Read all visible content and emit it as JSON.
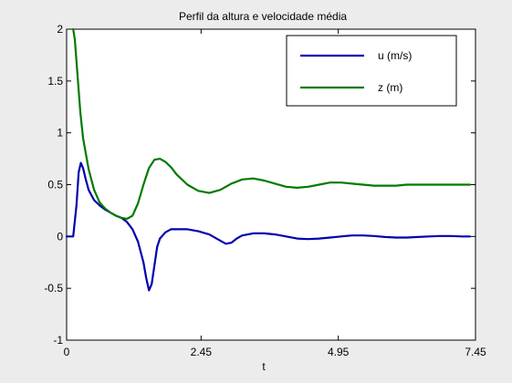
{
  "chart_data": {
    "type": "line",
    "title": "Perfil da altura e velocidade média",
    "xlabel": "t",
    "ylabel": "",
    "xlim": [
      0,
      7.45
    ],
    "ylim": [
      -1,
      2
    ],
    "xticks": [
      0,
      2.45,
      4.95,
      7.45
    ],
    "xtick_labels": [
      "0",
      "2.45",
      "4.95",
      "7.45"
    ],
    "yticks": [
      -1,
      -0.5,
      0,
      0.5,
      1,
      1.5,
      2
    ],
    "ytick_labels": [
      "-1",
      "-0.5",
      "0",
      "0.5",
      "1",
      "1.5",
      "2"
    ],
    "grid": false,
    "legend_position": "top-right",
    "series": [
      {
        "name": "u (m/s)",
        "color": "#0000b0",
        "x": [
          0,
          0.12,
          0.18,
          0.22,
          0.26,
          0.3,
          0.35,
          0.4,
          0.5,
          0.6,
          0.7,
          0.8,
          0.9,
          1.0,
          1.1,
          1.2,
          1.3,
          1.4,
          1.45,
          1.5,
          1.55,
          1.6,
          1.65,
          1.7,
          1.8,
          1.9,
          2.0,
          2.2,
          2.4,
          2.6,
          2.8,
          2.9,
          3.0,
          3.1,
          3.2,
          3.4,
          3.6,
          3.8,
          4.0,
          4.2,
          4.4,
          4.6,
          4.8,
          5.0,
          5.2,
          5.4,
          5.6,
          5.8,
          6.0,
          6.2,
          6.4,
          6.6,
          6.8,
          7.0,
          7.2,
          7.35
        ],
        "y": [
          0,
          0,
          0.3,
          0.62,
          0.71,
          0.66,
          0.55,
          0.45,
          0.35,
          0.3,
          0.26,
          0.23,
          0.2,
          0.18,
          0.14,
          0.07,
          -0.05,
          -0.25,
          -0.4,
          -0.52,
          -0.46,
          -0.28,
          -0.1,
          -0.02,
          0.04,
          0.07,
          0.07,
          0.07,
          0.05,
          0.02,
          -0.04,
          -0.07,
          -0.06,
          -0.02,
          0.01,
          0.03,
          0.03,
          0.02,
          0.0,
          -0.02,
          -0.025,
          -0.02,
          -0.01,
          0.0,
          0.01,
          0.01,
          0.005,
          -0.005,
          -0.01,
          -0.01,
          -0.005,
          0.0,
          0.005,
          0.005,
          0.0,
          0.0
        ]
      },
      {
        "name": "z (m)",
        "color": "#007a00",
        "x": [
          0.12,
          0.15,
          0.2,
          0.25,
          0.3,
          0.4,
          0.5,
          0.6,
          0.7,
          0.8,
          0.9,
          1.0,
          1.1,
          1.2,
          1.3,
          1.4,
          1.5,
          1.6,
          1.7,
          1.8,
          1.9,
          2.0,
          2.2,
          2.4,
          2.6,
          2.8,
          3.0,
          3.2,
          3.4,
          3.6,
          3.8,
          4.0,
          4.2,
          4.4,
          4.6,
          4.8,
          5.0,
          5.2,
          5.4,
          5.6,
          5.8,
          6.0,
          6.2,
          6.4,
          6.6,
          6.8,
          7.0,
          7.2,
          7.35
        ],
        "y": [
          2.0,
          1.9,
          1.55,
          1.2,
          0.95,
          0.65,
          0.45,
          0.33,
          0.27,
          0.23,
          0.2,
          0.18,
          0.17,
          0.2,
          0.32,
          0.5,
          0.66,
          0.74,
          0.75,
          0.72,
          0.67,
          0.6,
          0.5,
          0.44,
          0.42,
          0.45,
          0.51,
          0.55,
          0.56,
          0.54,
          0.51,
          0.48,
          0.47,
          0.48,
          0.5,
          0.52,
          0.52,
          0.51,
          0.5,
          0.49,
          0.49,
          0.49,
          0.5,
          0.5,
          0.5,
          0.5,
          0.5,
          0.5,
          0.5
        ]
      }
    ]
  }
}
